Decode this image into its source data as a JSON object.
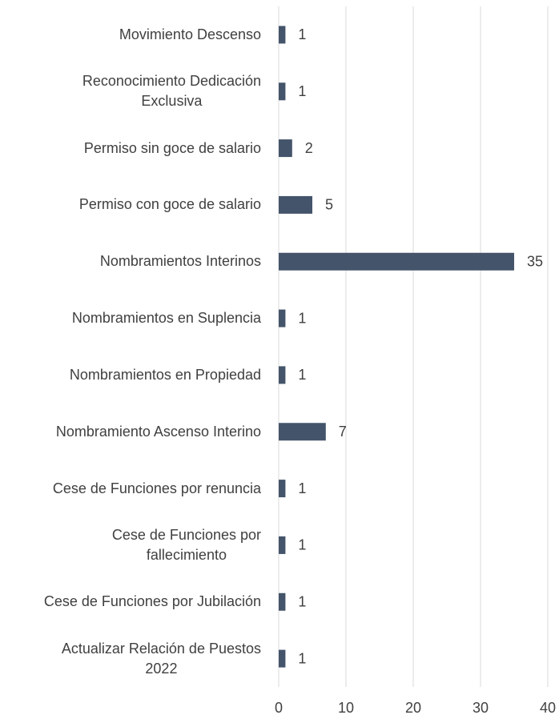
{
  "chart_data": {
    "type": "bar",
    "orientation": "horizontal",
    "categories": [
      "Movimiento Descenso",
      "Reconocimiento Dedicación\nExclusiva",
      "Permiso sin goce de salario",
      "Permiso con goce de salario",
      "Nombramientos Interinos",
      "Nombramientos en Suplencia",
      "Nombramientos en Propiedad",
      "Nombramiento Ascenso Interino",
      "Cese de Funciones por renuncia",
      "Cese de Funciones por\nfallecimiento",
      "Cese de Funciones por Jubilación",
      "Actualizar Relación de Puestos\n2022"
    ],
    "values": [
      1,
      1,
      2,
      5,
      35,
      1,
      1,
      7,
      1,
      1,
      1,
      1
    ],
    "color": "#44546a",
    "xlim": [
      0,
      40
    ],
    "xticks": [
      0,
      10,
      20,
      30,
      40
    ],
    "grid": true
  }
}
